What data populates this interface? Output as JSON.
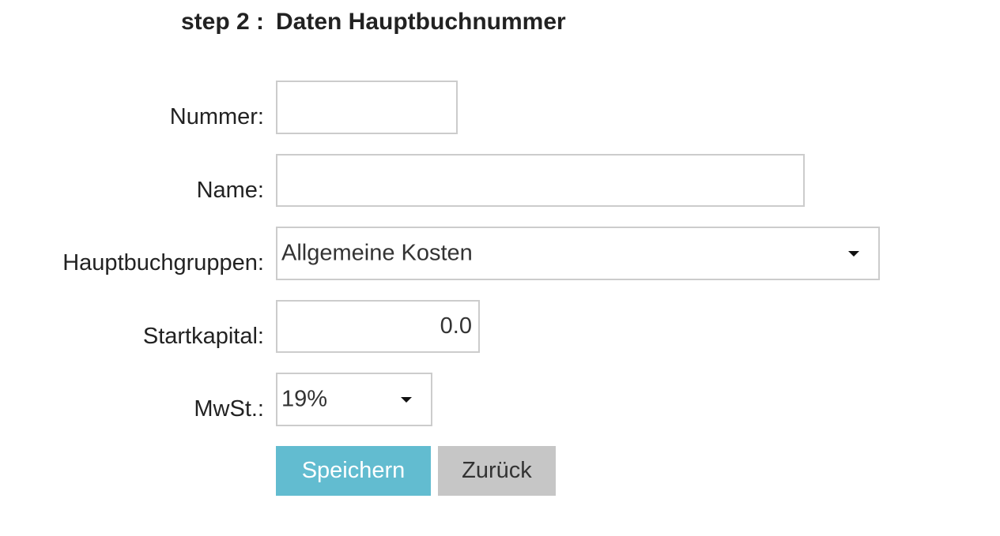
{
  "header": {
    "step": "step 2 :",
    "title": "Daten Hauptbuchnummer"
  },
  "form": {
    "nummer": {
      "label": "Nummer:",
      "value": ""
    },
    "name": {
      "label": "Name:",
      "value": ""
    },
    "hauptbuchgruppen": {
      "label": "Hauptbuchgruppen:",
      "selected": "Allgemeine Kosten"
    },
    "startkapital": {
      "label": "Startkapital:",
      "value": "0.0"
    },
    "mwst": {
      "label": "MwSt.:",
      "selected": "19%"
    }
  },
  "buttons": {
    "save": "Speichern",
    "back": "Zurück"
  },
  "colors": {
    "save_bg": "#62bcd0",
    "back_bg": "#c6c6c6"
  }
}
